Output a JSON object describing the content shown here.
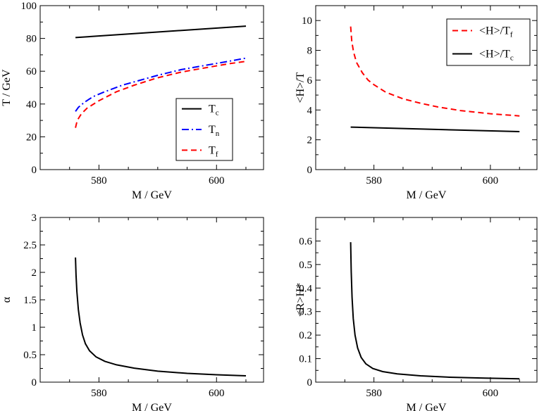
{
  "chart_data": [
    {
      "id": "p1",
      "type": "line",
      "xlabel": "M / GeV",
      "ylabel": "T / GeV",
      "xlim": [
        570,
        608
      ],
      "ylim": [
        0,
        100
      ],
      "xticks": [
        580,
        600
      ],
      "yticks": [
        0,
        20,
        40,
        60,
        80,
        100
      ],
      "legend_position": "bottom-right",
      "series": [
        {
          "name": "T_c",
          "label_main": "T",
          "label_sub": "c",
          "color": "#000000",
          "dash": "none",
          "points": [
            [
              576,
              80.5
            ],
            [
              605,
              87.5
            ]
          ]
        },
        {
          "name": "T_n",
          "label_main": "T",
          "label_sub": "n",
          "color": "#0000ff",
          "dash": "10,4,2,4",
          "points": [
            [
              576,
              35.5
            ],
            [
              576.5,
              38
            ],
            [
              577.5,
              41
            ],
            [
              579,
              44.5
            ],
            [
              581,
              47.5
            ],
            [
              584,
              51.5
            ],
            [
              587,
              54.5
            ],
            [
              590,
              57.5
            ],
            [
              594,
              61
            ],
            [
              598,
              63.5
            ],
            [
              602,
              66
            ],
            [
              605,
              68
            ]
          ]
        },
        {
          "name": "T_f",
          "label_main": "T",
          "label_sub": "f",
          "color": "#ff0000",
          "dash": "8,5",
          "points": [
            [
              576,
              25.5
            ],
            [
              576.3,
              30
            ],
            [
              577,
              34
            ],
            [
              578,
              37.5
            ],
            [
              580,
              42
            ],
            [
              583,
              47.5
            ],
            [
              586,
              51.5
            ],
            [
              590,
              56
            ],
            [
              594,
              59.5
            ],
            [
              598,
              62
            ],
            [
              602,
              64.5
            ],
            [
              605,
              66
            ]
          ]
        }
      ]
    },
    {
      "id": "p2",
      "type": "line",
      "xlabel": "M / GeV",
      "ylabel": "<H>/T",
      "xlim": [
        570,
        608
      ],
      "ylim": [
        0,
        11
      ],
      "xticks": [
        580,
        600
      ],
      "yticks": [
        0,
        2,
        4,
        6,
        8,
        10
      ],
      "legend_position": "top-right",
      "series": [
        {
          "name": "<H>/T_f",
          "label_main": "<H>/T",
          "label_sub": "f",
          "color": "#ff0000",
          "dash": "8,5",
          "points": [
            [
              576,
              9.6
            ],
            [
              576.2,
              8.6
            ],
            [
              576.5,
              7.9
            ],
            [
              577,
              7.2
            ],
            [
              578,
              6.5
            ],
            [
              579,
              6.0
            ],
            [
              580,
              5.7
            ],
            [
              582,
              5.2
            ],
            [
              585,
              4.75
            ],
            [
              588,
              4.45
            ],
            [
              591,
              4.2
            ],
            [
              595,
              3.95
            ],
            [
              600,
              3.75
            ],
            [
              605,
              3.6
            ]
          ]
        },
        {
          "name": "<H>/T_c",
          "label_main": "<H>/T",
          "label_sub": "c",
          "color": "#000000",
          "dash": "none",
          "points": [
            [
              576,
              2.85
            ],
            [
              590,
              2.7
            ],
            [
              605,
              2.55
            ]
          ]
        }
      ]
    },
    {
      "id": "p3",
      "type": "line",
      "xlabel": "M / GeV",
      "ylabel": "α",
      "xlim": [
        570,
        608
      ],
      "ylim": [
        0,
        3
      ],
      "xticks": [
        580,
        600
      ],
      "yticks": [
        0,
        0.5,
        1,
        1.5,
        2,
        2.5,
        3
      ],
      "series": [
        {
          "name": "alpha",
          "color": "#000000",
          "dash": "none",
          "points": [
            [
              576,
              2.27
            ],
            [
              576.1,
              1.95
            ],
            [
              576.25,
              1.65
            ],
            [
              576.5,
              1.32
            ],
            [
              576.8,
              1.08
            ],
            [
              577.2,
              0.86
            ],
            [
              577.7,
              0.7
            ],
            [
              578.4,
              0.57
            ],
            [
              579.5,
              0.46
            ],
            [
              581,
              0.38
            ],
            [
              583,
              0.315
            ],
            [
              586,
              0.255
            ],
            [
              590,
              0.2
            ],
            [
              595,
              0.16
            ],
            [
              600,
              0.135
            ],
            [
              605,
              0.115
            ]
          ]
        }
      ]
    },
    {
      "id": "p4",
      "type": "line",
      "xlabel": "M / GeV",
      "ylabel": "<R>H*",
      "xlim": [
        570,
        608
      ],
      "ylim": [
        0,
        0.7
      ],
      "xticks": [
        580,
        600
      ],
      "yticks": [
        0,
        0.1,
        0.2,
        0.3,
        0.4,
        0.5,
        0.6
      ],
      "series": [
        {
          "name": "RH",
          "color": "#000000",
          "dash": "none",
          "points": [
            [
              576,
              0.595
            ],
            [
              576.1,
              0.47
            ],
            [
              576.25,
              0.36
            ],
            [
              576.45,
              0.27
            ],
            [
              576.75,
              0.2
            ],
            [
              577.2,
              0.145
            ],
            [
              577.8,
              0.105
            ],
            [
              578.6,
              0.078
            ],
            [
              579.8,
              0.058
            ],
            [
              581.5,
              0.045
            ],
            [
              584,
              0.035
            ],
            [
              588,
              0.027
            ],
            [
              593,
              0.021
            ],
            [
              599,
              0.017
            ],
            [
              605,
              0.014
            ]
          ]
        }
      ]
    }
  ]
}
